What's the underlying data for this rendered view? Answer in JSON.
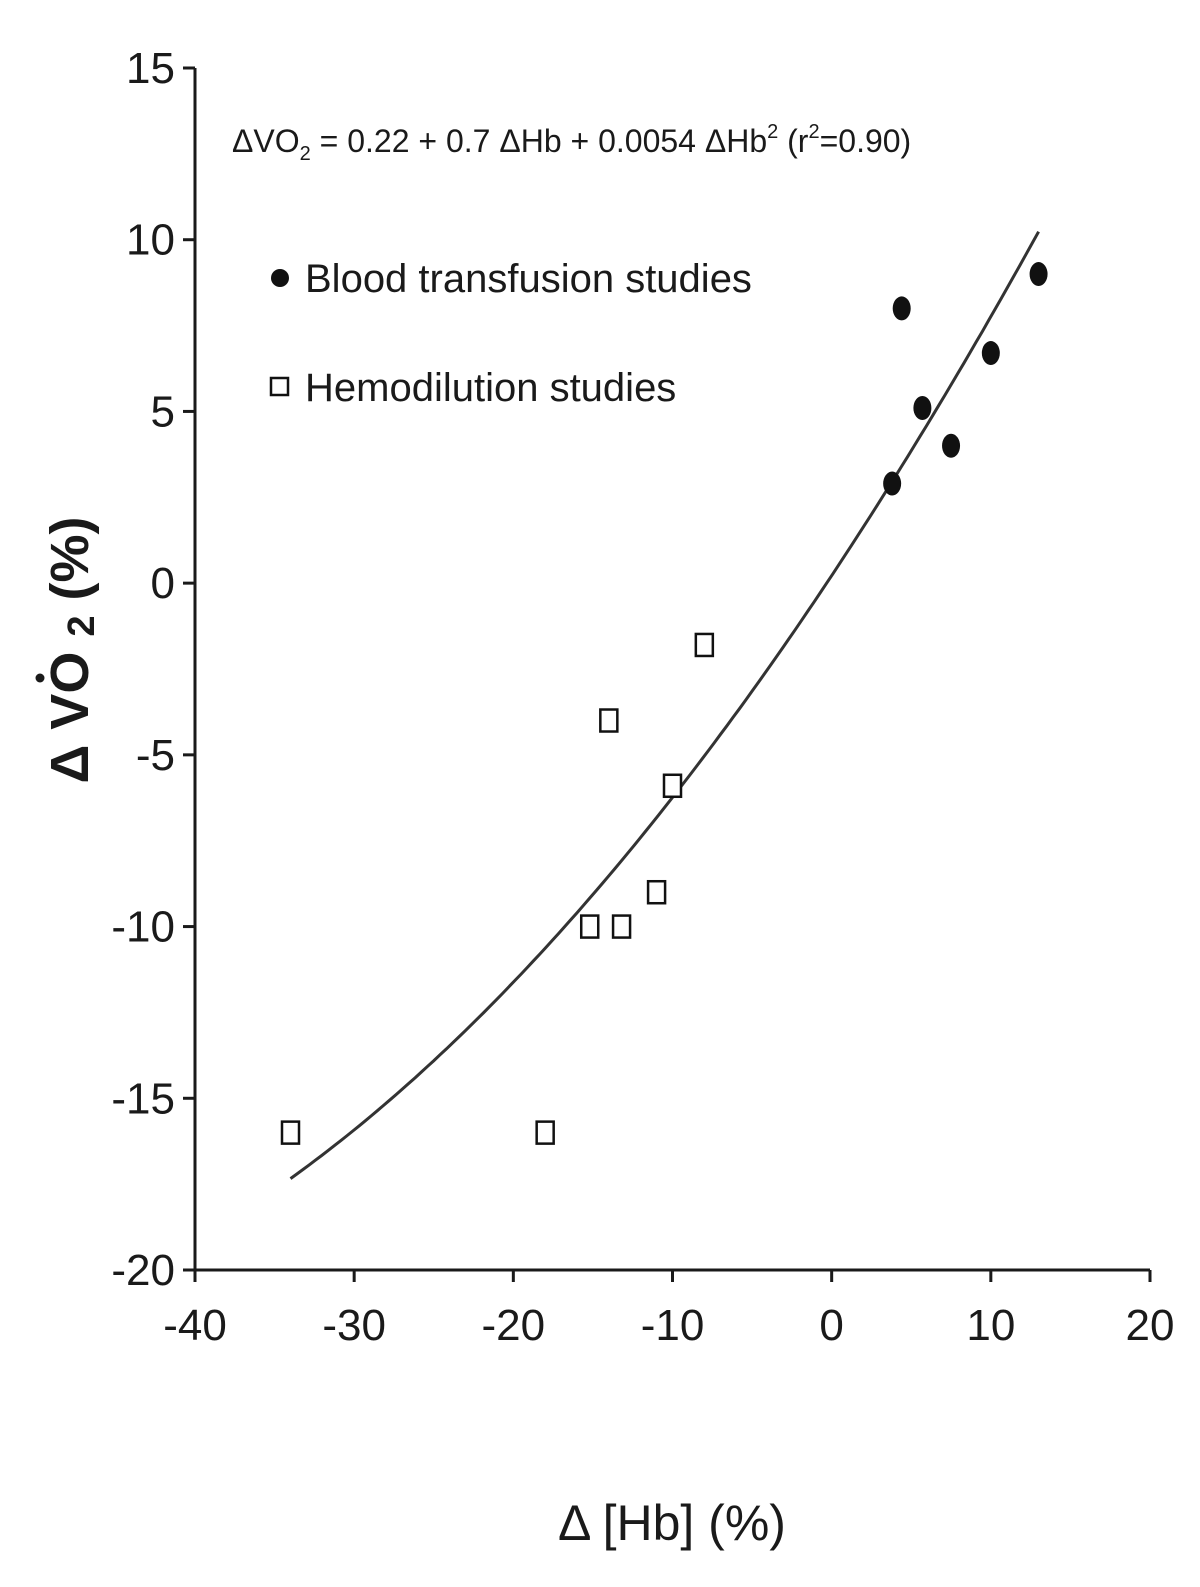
{
  "chart_data": {
    "type": "scatter",
    "title": "",
    "equation": {
      "prefix": "ΔVO",
      "prefix_sub": "2",
      "body": " = 0.22 + 0.7 ΔHb + 0.0054 ΔHb",
      "body_sup": "2",
      "fit_open": " (r",
      "fit_sup": "2",
      "fit_close": "=0.90)"
    },
    "xlabel": "Δ [Hb] (%)",
    "ylabel": {
      "delta": "Δ",
      "v": "V",
      "o": "O",
      "sub": "2",
      "unit": "(%)"
    },
    "xlim": [
      -40,
      20
    ],
    "ylim": [
      -20,
      15
    ],
    "xticks": [
      -40,
      -30,
      -20,
      -10,
      0,
      10,
      20
    ],
    "yticks": [
      15,
      10,
      5,
      0,
      -5,
      -10,
      -15,
      -20
    ],
    "grid": false,
    "legend_position": "top-left",
    "series": [
      {
        "name": "Blood transfusion studies",
        "marker": "filled-circle",
        "color": "#111111",
        "points": [
          {
            "x": 3.8,
            "y": 2.9
          },
          {
            "x": 4.4,
            "y": 8.0
          },
          {
            "x": 5.7,
            "y": 5.1
          },
          {
            "x": 7.5,
            "y": 4.0
          },
          {
            "x": 10.0,
            "y": 6.7
          },
          {
            "x": 13.0,
            "y": 9.0
          }
        ]
      },
      {
        "name": "Hemodilution studies",
        "marker": "open-square",
        "color": "#111111",
        "points": [
          {
            "x": -34.0,
            "y": -16.0
          },
          {
            "x": -18.0,
            "y": -16.0
          },
          {
            "x": -15.2,
            "y": -10.0
          },
          {
            "x": -14.0,
            "y": -4.0
          },
          {
            "x": -13.2,
            "y": -10.0
          },
          {
            "x": -11.0,
            "y": -9.0
          },
          {
            "x": -10.0,
            "y": -5.9
          },
          {
            "x": -8.0,
            "y": -1.8
          }
        ]
      }
    ],
    "fit_curve": {
      "intercept": 0.22,
      "linear": 0.7,
      "quadratic": 0.0054,
      "x_range": [
        -34,
        13
      ],
      "color": "#333333"
    }
  }
}
